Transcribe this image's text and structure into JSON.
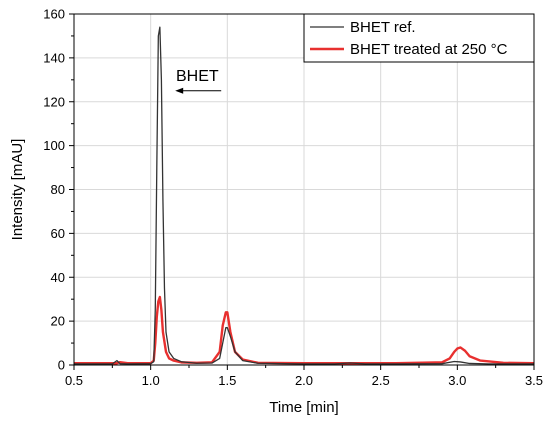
{
  "chart_data": {
    "type": "line",
    "xlabel": "Time [min]",
    "ylabel": "Intensity [mAU]",
    "xlim": [
      0.5,
      3.5
    ],
    "ylim": [
      0,
      160
    ],
    "xticks": [
      "0.5",
      "1.0",
      "1.5",
      "2.0",
      "2.5",
      "3.0",
      "3.5"
    ],
    "yticks": [
      "0",
      "20",
      "40",
      "60",
      "80",
      "100",
      "120",
      "140",
      "160"
    ],
    "grid": true,
    "legend_position": "top-right",
    "annotation": {
      "text": "BHET",
      "arrow": "left",
      "arrow_y": 125,
      "arrow_x": [
        1.16,
        1.46
      ]
    },
    "series": [
      {
        "name": "BHET ref.",
        "color": "#333333",
        "x": [
          0.5,
          0.75,
          0.78,
          0.8,
          0.85,
          1.0,
          1.02,
          1.03,
          1.04,
          1.05,
          1.06,
          1.07,
          1.08,
          1.09,
          1.1,
          1.12,
          1.15,
          1.2,
          1.3,
          1.4,
          1.45,
          1.47,
          1.49,
          1.5,
          1.52,
          1.55,
          1.6,
          1.7,
          2.0,
          2.2,
          2.3,
          2.4,
          2.6,
          2.9,
          2.98,
          3.02,
          3.08,
          3.2,
          3.5
        ],
        "y": [
          0.5,
          0.5,
          2,
          0.6,
          0.5,
          0.6,
          1.5,
          25,
          90,
          150,
          154,
          130,
          75,
          35,
          15,
          6,
          3,
          1.5,
          0.8,
          0.9,
          3,
          10,
          17,
          17,
          13,
          6,
          2,
          0.8,
          0.5,
          0.5,
          0.9,
          0.5,
          0.5,
          0.6,
          1.6,
          1.4,
          0.7,
          0.5,
          0.5
        ]
      },
      {
        "name": "BHET treated at 250 °C",
        "color": "#e8302f",
        "x": [
          0.5,
          0.78,
          0.8,
          0.85,
          1.0,
          1.02,
          1.03,
          1.04,
          1.05,
          1.06,
          1.07,
          1.08,
          1.1,
          1.12,
          1.15,
          1.2,
          1.3,
          1.4,
          1.45,
          1.47,
          1.49,
          1.5,
          1.52,
          1.55,
          1.6,
          1.7,
          2.0,
          2.3,
          2.6,
          2.9,
          2.95,
          2.98,
          3.0,
          3.02,
          3.05,
          3.08,
          3.15,
          3.3,
          3.5
        ],
        "y": [
          0.8,
          0.8,
          1.3,
          0.8,
          0.8,
          2,
          10,
          22,
          29,
          31,
          25,
          15,
          6,
          3,
          2,
          1.2,
          1,
          1.2,
          6,
          18,
          24,
          24,
          15,
          6,
          2.5,
          1,
          0.8,
          0.8,
          0.8,
          1.2,
          3,
          6,
          7.5,
          8,
          6.5,
          4,
          2,
          1,
          0.8
        ]
      }
    ]
  }
}
